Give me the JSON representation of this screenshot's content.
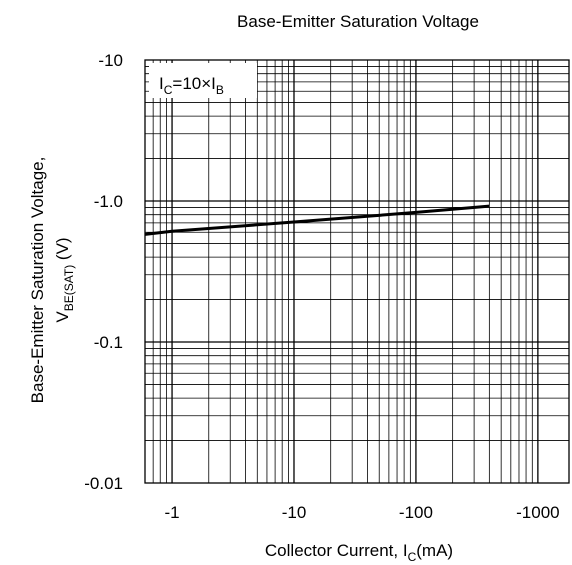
{
  "chart_data": {
    "type": "line",
    "title": "Base-Emitter Saturation Voltage",
    "xlabel": {
      "main": "Collector Current, I",
      "sub": "C",
      "tail": "(mA)"
    },
    "ylabel": {
      "line1": "Base-Emitter Saturation Voltage,",
      "line2_main": "V",
      "line2_sub": "BE(SAT)",
      "line2_tail": " (V)"
    },
    "x_scale": "log",
    "y_scale": "log",
    "x_range": [
      -0.6,
      -1800
    ],
    "y_range": [
      -0.01,
      -10
    ],
    "x_ticks": [
      {
        "value": -1,
        "label": "-1"
      },
      {
        "value": -10,
        "label": "-10"
      },
      {
        "value": -100,
        "label": "-100"
      },
      {
        "value": -1000,
        "label": "-1000"
      }
    ],
    "y_ticks": [
      {
        "value": -0.01,
        "label": "-0.01"
      },
      {
        "value": -0.1,
        "label": "-0.1"
      },
      {
        "value": -1,
        "label": "-1.0"
      },
      {
        "value": -10,
        "label": "-10"
      }
    ],
    "grid": true,
    "annotation": {
      "p1": "I",
      "s1": "C",
      "p2": "=10×I",
      "s2": "B"
    },
    "series": [
      {
        "x": [
          -0.6,
          -1,
          -10,
          -100,
          -400
        ],
        "y": [
          -0.58,
          -0.61,
          -0.71,
          -0.83,
          -0.92
        ]
      }
    ]
  }
}
